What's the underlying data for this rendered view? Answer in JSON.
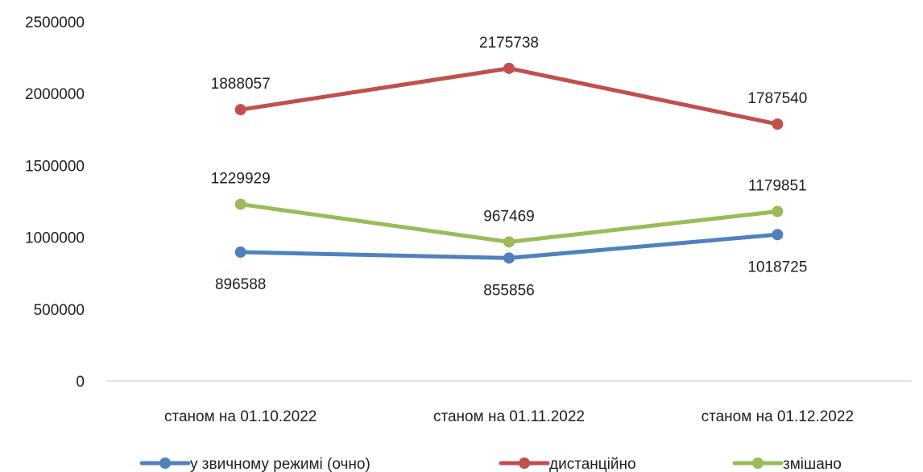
{
  "chart_data": {
    "type": "line",
    "categories": [
      "станом на 01.10.2022",
      "станом на 01.11.2022",
      "станом на 01.12.2022"
    ],
    "ylim": [
      0,
      2500000
    ],
    "yticks": [
      0,
      500000,
      1000000,
      1500000,
      2000000,
      2500000
    ],
    "grid": false,
    "legend_position": "bottom",
    "series": [
      {
        "name": "у звичному режимі (очно)",
        "color": "#4f81bd",
        "values": [
          896588,
          855856,
          1018725
        ],
        "label_position": "below"
      },
      {
        "name": "дистанційно",
        "color": "#c0504d",
        "values": [
          1888057,
          2175738,
          1787540
        ],
        "label_position": "above"
      },
      {
        "name": "змішано",
        "color": "#9bbb59",
        "values": [
          1229929,
          967469,
          1179851
        ],
        "label_position": "above"
      }
    ]
  }
}
